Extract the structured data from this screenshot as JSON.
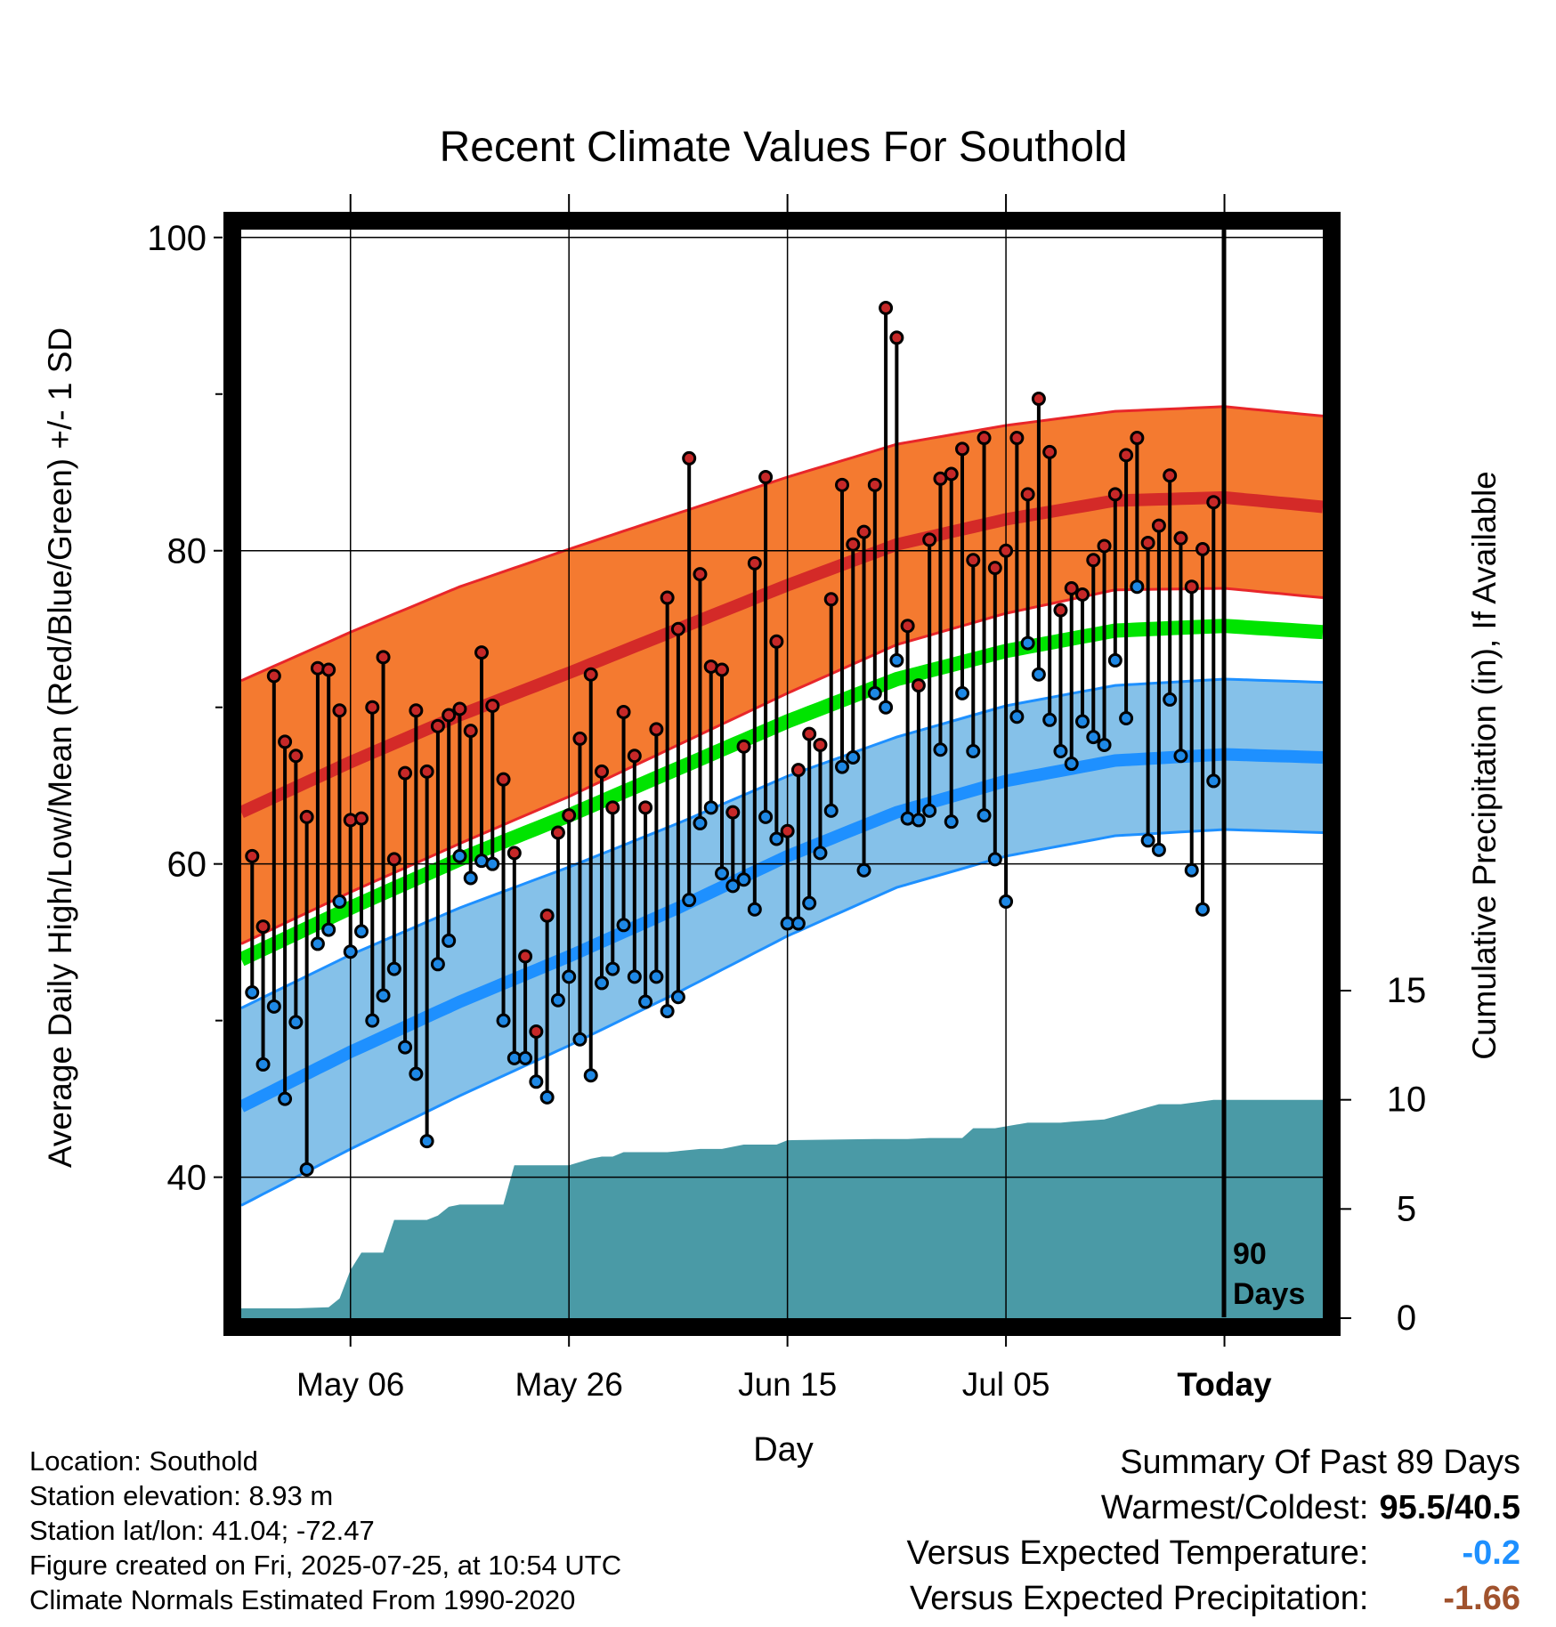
{
  "title": "Recent Climate Values For Southold",
  "y_left_label": "Average Daily High/Low/Mean (Red/Blue/Green) +/- 1 SD",
  "y_right_label": "Cumulative Precipitation (in), If Available",
  "x_label": "Day",
  "today_label": "Today",
  "days_label_line1": "90",
  "days_label_line2": "Days",
  "info": {
    "location": "Location: Southold",
    "elevation": "Station elevation: 8.93 m",
    "latlon": "Station lat/lon: 41.04; -72.47",
    "created": "Figure created on Fri, 2025-07-25, at 10:54 UTC",
    "normals": "Climate Normals Estimated From 1990-2020"
  },
  "summary": {
    "heading": "Summary Of Past 89 Days",
    "warm_cold_label": "Warmest/Coldest:",
    "warm_cold_value": "95.5/40.5",
    "temp_label": "Versus Expected Temperature:",
    "temp_value": "-0.2",
    "precip_label": "Versus Expected Precipitation:",
    "precip_value": "-1.66"
  },
  "colors": {
    "high_band": "#f47a30",
    "high_mean": "#d42a28",
    "high_edge": "#e8262a",
    "low_band": "#85c1e9",
    "low_mean": "#1e90ff",
    "mean_line": "#00e400",
    "precip": "#4a9aa6",
    "high_dot": "#c62828",
    "low_dot": "#1e88e5",
    "temp_value": "#1e90ff",
    "precip_value": "#a0522d"
  },
  "chart_data": {
    "type": "line",
    "x_unit": "day offset relative to Today (0 = Today, 2025-07-25)",
    "xlim": [
      -90,
      9
    ],
    "ylim_temp": [
      31,
      100.5
    ],
    "ylim_precip": [
      0,
      15
    ],
    "y_ticks": [
      40,
      60,
      80,
      100
    ],
    "precip_ticks": [
      0,
      5,
      10,
      15
    ],
    "x_ticks": [
      {
        "pos": -80,
        "label": "May 06"
      },
      {
        "pos": -60,
        "label": "May 26"
      },
      {
        "pos": -40,
        "label": "Jun 15"
      },
      {
        "pos": -20,
        "label": "Jul 05"
      },
      {
        "pos": 0,
        "label": "Today"
      }
    ],
    "grid": true,
    "normal_days": [
      -90,
      -80,
      -70,
      -60,
      -50,
      -40,
      -30,
      -20,
      -10,
      0,
      9
    ],
    "normal_high": [
      63.3,
      66.5,
      69.5,
      72.2,
      75.0,
      77.8,
      80.4,
      82.0,
      83.2,
      83.4,
      82.8
    ],
    "normal_high_sd": [
      8.4,
      8.3,
      8.2,
      7.9,
      7.4,
      6.9,
      6.4,
      6.0,
      5.7,
      5.8,
      5.8
    ],
    "normal_low": [
      44.5,
      48.0,
      51.2,
      54.1,
      57.2,
      60.5,
      63.3,
      65.3,
      66.6,
      67.0,
      66.8
    ],
    "normal_low_sd": [
      6.3,
      6.2,
      6.0,
      5.7,
      5.4,
      5.1,
      4.8,
      4.8,
      4.8,
      4.8,
      4.8
    ],
    "normal_mean": [
      53.9,
      57.2,
      60.3,
      63.1,
      66.1,
      69.1,
      71.8,
      73.6,
      74.9,
      75.2,
      74.8
    ],
    "daily_high": [
      60.5,
      56.0,
      72.0,
      67.8,
      66.9,
      63.0,
      72.5,
      72.4,
      69.8,
      62.8,
      62.9,
      70.0,
      73.2,
      60.3,
      65.8,
      69.8,
      65.9,
      68.8,
      69.5,
      69.9,
      68.5,
      73.5,
      70.1,
      65.4,
      60.7,
      54.1,
      49.3,
      56.7,
      62.0,
      63.1,
      68.0,
      72.1,
      65.9,
      63.6,
      69.7,
      66.9,
      63.6,
      68.6,
      77.0,
      75.0,
      85.9,
      78.5,
      72.6,
      72.4,
      63.3,
      67.5,
      79.2,
      84.7,
      74.2,
      62.1,
      66.0,
      68.3,
      67.6,
      76.9,
      84.2,
      80.4,
      81.2,
      84.2,
      95.5,
      93.6,
      75.2,
      71.4,
      80.7,
      84.6,
      84.9,
      86.5,
      79.4,
      87.2,
      78.9,
      80.0,
      87.2,
      83.6,
      89.7,
      86.3,
      76.2,
      77.6,
      77.2,
      79.4,
      80.3,
      83.6,
      86.1,
      87.2,
      80.5,
      81.6,
      84.8,
      80.8,
      77.7,
      80.1,
      83.1
    ],
    "daily_low": [
      51.8,
      47.2,
      50.9,
      45.0,
      49.9,
      40.5,
      54.9,
      55.8,
      57.6,
      54.4,
      55.7,
      50.0,
      51.6,
      53.3,
      48.3,
      46.6,
      42.3,
      53.6,
      55.1,
      60.5,
      59.1,
      60.2,
      60.0,
      50.0,
      47.6,
      47.6,
      46.1,
      45.1,
      51.3,
      52.8,
      48.8,
      46.5,
      52.4,
      53.3,
      56.1,
      52.8,
      51.2,
      52.8,
      50.6,
      51.5,
      57.7,
      62.6,
      63.6,
      59.4,
      58.6,
      59.0,
      57.1,
      63.0,
      61.6,
      56.2,
      56.2,
      57.5,
      60.7,
      63.4,
      66.2,
      66.8,
      59.6,
      70.9,
      70.0,
      73.0,
      62.9,
      62.8,
      63.4,
      67.3,
      62.7,
      70.9,
      67.2,
      63.1,
      60.3,
      57.6,
      69.4,
      74.1,
      72.1,
      69.2,
      67.2,
      66.4,
      69.1,
      68.1,
      67.6,
      73.0,
      69.3,
      77.7,
      61.5,
      60.9,
      70.5,
      66.9,
      59.6,
      57.1,
      65.3
    ],
    "precip_days": [
      -90,
      -85,
      -82,
      -81,
      -80,
      -79,
      -77,
      -76,
      -73,
      -72,
      -71,
      -70,
      -69,
      -67,
      -66,
      -65,
      -64,
      -63,
      -61,
      -60,
      -58,
      -57,
      -56,
      -55,
      -53,
      -52,
      -51,
      -48,
      -46,
      -44,
      -41,
      -40,
      -32,
      -31,
      -30,
      -29,
      -27,
      -26,
      -24,
      -23,
      -22,
      -21,
      -18,
      -17,
      -15,
      -14,
      -11,
      -6,
      -5,
      -4,
      -1,
      9
    ],
    "precip_cum": [
      0.45,
      0.45,
      0.5,
      0.9,
      2.2,
      3.0,
      3.0,
      4.5,
      4.5,
      4.7,
      5.1,
      5.2,
      5.2,
      5.2,
      5.2,
      7.0,
      7.0,
      7.0,
      7.0,
      7.0,
      7.3,
      7.4,
      7.4,
      7.6,
      7.6,
      7.6,
      7.6,
      7.75,
      7.75,
      7.95,
      7.95,
      8.15,
      8.2,
      8.2,
      8.2,
      8.2,
      8.25,
      8.25,
      8.25,
      8.7,
      8.7,
      8.7,
      8.95,
      8.95,
      8.95,
      9.0,
      9.1,
      9.8,
      9.8,
      9.8,
      10.0,
      10.0
    ]
  }
}
